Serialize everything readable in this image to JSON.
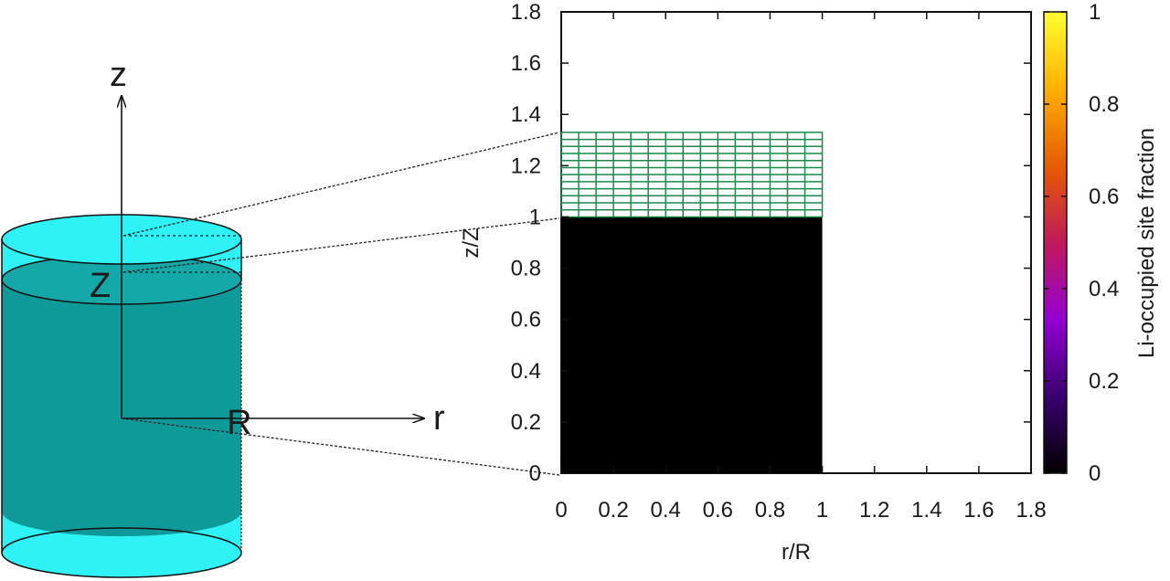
{
  "cylinder": {
    "axis_labels": {
      "z": "z",
      "r": "r"
    },
    "dimension_labels": {
      "height": "Z",
      "radius": "R"
    },
    "colors": {
      "body": "#0f9a9a",
      "light": "#2ef2f5",
      "outline": "#111111"
    }
  },
  "plot": {
    "xlabel": "r/R",
    "ylabel": "z/Z",
    "x_ticks": [
      "0",
      "0.2",
      "0.4",
      "0.6",
      "0.8",
      "1",
      "1.2",
      "1.4",
      "1.6",
      "1.8"
    ],
    "y_ticks": [
      "0",
      "0.2",
      "0.4",
      "0.6",
      "0.8",
      "1",
      "1.2",
      "1.4",
      "1.6",
      "1.8"
    ],
    "colors": {
      "filled": "#000000",
      "grid": "#1a8a4a"
    }
  },
  "colorbar": {
    "label": "Li-occupied  site  fraction",
    "ticks": [
      "0",
      "0.2",
      "0.4",
      "0.6",
      "0.8",
      "1"
    ],
    "range": [
      0,
      1
    ],
    "gradient_colors": [
      "#000000",
      "#3a0070",
      "#9400d3",
      "#c2185b",
      "#e65c00",
      "#ffb000",
      "#ffff30"
    ]
  },
  "chart_data": {
    "type": "heatmap",
    "xlabel": "r/R",
    "ylabel": "z/Z",
    "xlim": [
      0,
      1.8
    ],
    "ylim": [
      0,
      1.8
    ],
    "regions": [
      {
        "r_range": [
          0,
          1
        ],
        "z_range": [
          0,
          1
        ],
        "site_fraction": 0
      },
      {
        "r_range": [
          0,
          1
        ],
        "z_range": [
          1,
          1.33
        ],
        "site_fraction": null,
        "grid_cols": 15,
        "grid_rows": 12
      }
    ],
    "colorbar": {
      "label": "Li-occupied  site  fraction",
      "min": 0,
      "max": 1
    }
  }
}
